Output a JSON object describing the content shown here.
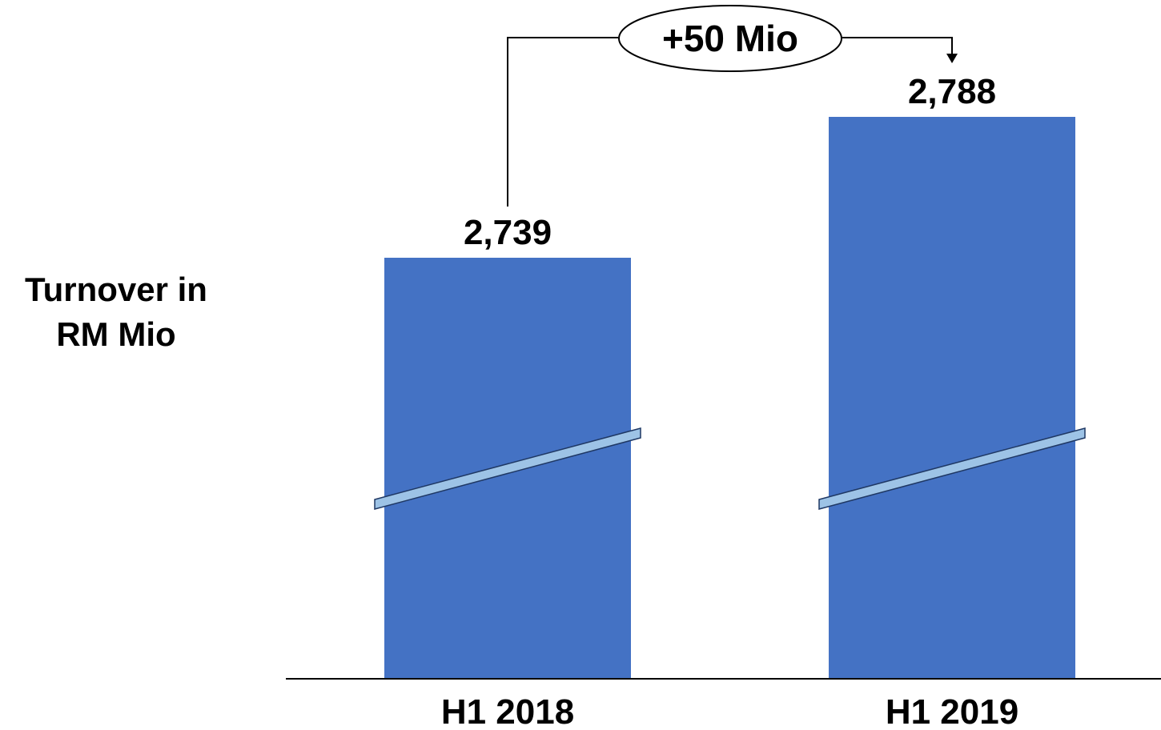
{
  "chart_data": {
    "type": "bar",
    "categories": [
      "H1 2018",
      "H1 2019"
    ],
    "values": [
      2739,
      2788
    ],
    "value_labels": [
      "2,739",
      "2,788"
    ],
    "ylabel_lines": [
      "Turnover in",
      "RM Mio"
    ],
    "annotation": "+50 Mio",
    "axis_break": true,
    "grid": false,
    "bar_color": "#4472C4",
    "break_color": "#9DC3E6"
  }
}
